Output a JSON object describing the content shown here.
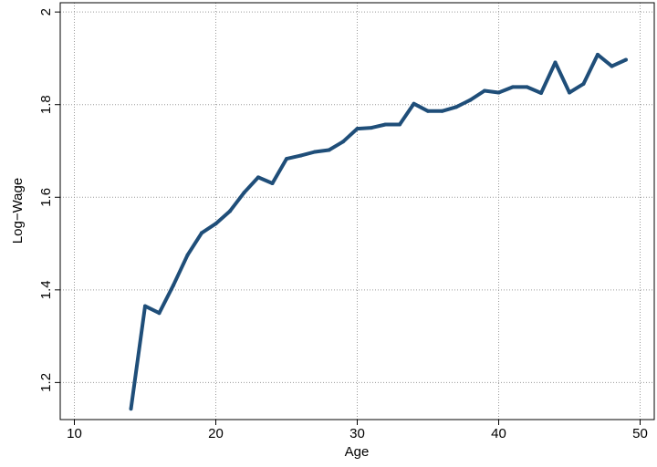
{
  "chart_data": {
    "type": "line",
    "title": "",
    "xlabel": "Age",
    "ylabel": "Log−Wage",
    "xlim": [
      9,
      51
    ],
    "ylim": [
      1.12,
      2.02
    ],
    "xticks": [
      10,
      20,
      30,
      40,
      50
    ],
    "yticks": [
      1.2,
      1.4,
      1.6,
      1.8,
      2
    ],
    "ytick_labels": [
      "1.2",
      "1.4",
      "1.6",
      "1.8",
      "2"
    ],
    "grid": true,
    "legend": "none",
    "colors": {
      "line": "#1f4e79",
      "grid": "#9a9a9a"
    },
    "series": [
      {
        "x": [
          14,
          15,
          16,
          17,
          18,
          19,
          20,
          21,
          22,
          23,
          24,
          25,
          26,
          27,
          28,
          29,
          30,
          31,
          32,
          33,
          34,
          35,
          36,
          37,
          38,
          39,
          40,
          41,
          42,
          43,
          44,
          45,
          46,
          47,
          48,
          49
        ],
        "values": [
          1.143,
          1.365,
          1.35,
          1.41,
          1.475,
          1.523,
          1.543,
          1.57,
          1.61,
          1.643,
          1.63,
          1.683,
          1.69,
          1.698,
          1.702,
          1.72,
          1.748,
          1.75,
          1.757,
          1.757,
          1.802,
          1.786,
          1.786,
          1.795,
          1.81,
          1.83,
          1.826,
          1.838,
          1.838,
          1.825,
          1.891,
          1.826,
          1.845,
          1.908,
          1.883,
          1.897
        ]
      }
    ]
  }
}
